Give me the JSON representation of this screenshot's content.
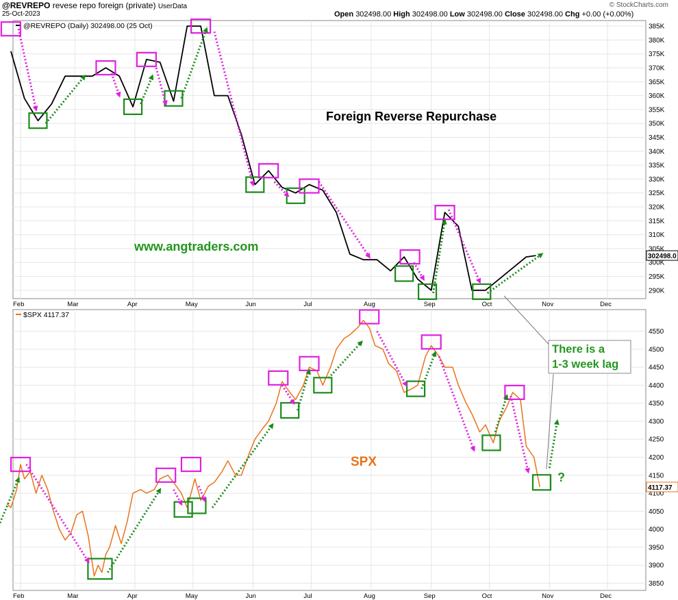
{
  "header": {
    "symbol": "@REVREPO",
    "description": "revese repo foreign (private)",
    "userdata": "UserData",
    "date": "25-Oct-2023",
    "quote": {
      "open_label": "Open",
      "open": "302498.00",
      "high_label": "High",
      "high": "302498.00",
      "low_label": "Low",
      "low": "302498.00",
      "close_label": "Close",
      "close": "302498.00",
      "chg_label": "Chg",
      "chg": "+0.00 (+0.00%)"
    },
    "brand": "© StockCharts.com"
  },
  "chart_data": [
    {
      "type": "line",
      "legend": "@REVREPO (Daily) 302498.00 (25 Oct)",
      "title": "Foreign Reverse Repurchase",
      "watermark": "www.angtraders.com",
      "last_label": "302498.0",
      "line_color": "#000000",
      "ylim": [
        287,
        387
      ],
      "y_ticks": [
        "290K",
        "295K",
        "300K",
        "305K",
        "310K",
        "315K",
        "320K",
        "325K",
        "330K",
        "335K",
        "340K",
        "345K",
        "350K",
        "355K",
        "360K",
        "365K",
        "370K",
        "375K",
        "380K",
        "385K"
      ],
      "x_ticks": [
        "Feb",
        "Mar",
        "Apr",
        "May",
        "Jun",
        "Jul",
        "Aug",
        "Sep",
        "Oct",
        "Nov",
        "Dec"
      ],
      "series": [
        {
          "x": [
            "2023-01-27",
            "2023-02-03",
            "2023-02-10",
            "2023-02-17",
            "2023-02-24",
            "2023-03-03",
            "2023-03-10",
            "2023-03-17",
            "2023-03-24",
            "2023-03-31",
            "2023-04-07",
            "2023-04-14",
            "2023-04-21",
            "2023-04-28",
            "2023-05-05",
            "2023-05-12",
            "2023-05-19",
            "2023-05-26",
            "2023-06-02",
            "2023-06-09",
            "2023-06-16",
            "2023-06-23",
            "2023-06-30",
            "2023-07-07",
            "2023-07-14",
            "2023-07-21",
            "2023-07-28",
            "2023-08-04",
            "2023-08-11",
            "2023-08-18",
            "2023-08-25",
            "2023-09-01",
            "2023-09-08",
            "2023-09-15",
            "2023-09-22",
            "2023-09-29",
            "2023-10-06",
            "2023-10-13",
            "2023-10-20",
            "2023-10-25"
          ],
          "values": [
            376,
            359,
            351,
            357,
            367,
            367,
            367,
            370,
            367,
            356,
            373,
            372,
            358,
            385,
            385,
            360,
            360,
            346,
            328,
            333,
            327,
            325,
            328,
            326,
            318,
            303,
            301,
            301,
            297,
            302,
            294,
            290,
            318,
            313,
            290,
            290,
            294,
            298,
            302,
            302.5
          ]
        }
      ],
      "annotations": [
        {
          "type": "peak-box",
          "x": "2023-01-27",
          "y": 384
        },
        {
          "type": "trough-box",
          "x": "2023-02-10",
          "y": 351
        },
        {
          "type": "peak-box",
          "x": "2023-03-17",
          "y": 370
        },
        {
          "type": "trough-box",
          "x": "2023-03-31",
          "y": 356
        },
        {
          "type": "peak-box",
          "x": "2023-04-07",
          "y": 373
        },
        {
          "type": "trough-box",
          "x": "2023-04-21",
          "y": 359
        },
        {
          "type": "peak-box",
          "x": "2023-05-05",
          "y": 385
        },
        {
          "type": "trough-box",
          "x": "2023-06-02",
          "y": 328
        },
        {
          "type": "peak-box",
          "x": "2023-06-09",
          "y": 333
        },
        {
          "type": "trough-box",
          "x": "2023-06-23",
          "y": 324
        },
        {
          "type": "peak-box",
          "x": "2023-06-30",
          "y": 327.5
        },
        {
          "type": "trough-box",
          "x": "2023-08-18",
          "y": 296
        },
        {
          "type": "peak-box",
          "x": "2023-08-21",
          "y": 302
        },
        {
          "type": "trough-box",
          "x": "2023-08-30",
          "y": 289.5
        },
        {
          "type": "peak-box",
          "x": "2023-09-08",
          "y": 318
        },
        {
          "type": "trough-box",
          "x": "2023-09-27",
          "y": 289.5
        },
        {
          "type": "down-arrow",
          "from": [
            "2023-01-31",
            384
          ],
          "to": [
            "2023-02-09",
            355
          ]
        },
        {
          "type": "up-arrow",
          "from": [
            "2023-02-14",
            350
          ],
          "to": [
            "2023-03-06",
            367
          ]
        },
        {
          "type": "down-arrow",
          "from": [
            "2023-03-20",
            368
          ],
          "to": [
            "2023-03-24",
            360
          ]
        },
        {
          "type": "up-arrow",
          "from": [
            "2023-04-04",
            357
          ],
          "to": [
            "2023-04-10",
            367
          ]
        },
        {
          "type": "down-arrow",
          "from": [
            "2023-04-12",
            370
          ],
          "to": [
            "2023-04-17",
            357
          ]
        },
        {
          "type": "up-arrow",
          "from": [
            "2023-04-25",
            359
          ],
          "to": [
            "2023-05-08",
            384
          ]
        },
        {
          "type": "down-arrow",
          "from": [
            "2023-05-12",
            383
          ],
          "to": [
            "2023-06-01",
            328
          ]
        },
        {
          "type": "down-arrow",
          "from": [
            "2023-06-12",
            329
          ],
          "to": [
            "2023-06-19",
            324
          ]
        },
        {
          "type": "down-arrow",
          "from": [
            "2023-07-05",
            329
          ],
          "to": [
            "2023-07-31",
            302
          ]
        },
        {
          "type": "down-arrow",
          "from": [
            "2023-08-23",
            300
          ],
          "to": [
            "2023-08-28",
            294
          ]
        },
        {
          "type": "up-arrow",
          "from": [
            "2023-09-02",
            289
          ],
          "to": [
            "2023-09-08",
            315
          ]
        },
        {
          "type": "down-arrow",
          "from": [
            "2023-09-10",
            319
          ],
          "to": [
            "2023-09-26",
            293
          ]
        },
        {
          "type": "up-arrow",
          "from": [
            "2023-09-30",
            289
          ],
          "to": [
            "2023-10-28",
            303
          ]
        }
      ]
    },
    {
      "type": "line",
      "legend": "$SPX 4117.37",
      "title": "SPX",
      "last_label": "4117.37",
      "line_color": "#e8731a",
      "ylim": [
        3830,
        4610
      ],
      "y_ticks": [
        "3850",
        "3900",
        "3950",
        "4000",
        "4050",
        "4100",
        "4150",
        "4200",
        "4250",
        "4300",
        "4350",
        "4400",
        "4450",
        "4500",
        "4550"
      ],
      "x_ticks": [
        "Feb",
        "Mar",
        "Apr",
        "May",
        "Jun",
        "Jul",
        "Aug",
        "Sep",
        "Oct",
        "Nov",
        "Dec"
      ],
      "series": [
        {
          "x": [
            "2023-01-25",
            "2023-01-27",
            "2023-01-30",
            "2023-02-01",
            "2023-02-03",
            "2023-02-06",
            "2023-02-09",
            "2023-02-12",
            "2023-02-15",
            "2023-02-18",
            "2023-02-21",
            "2023-02-24",
            "2023-02-27",
            "2023-03-02",
            "2023-03-05",
            "2023-03-08",
            "2023-03-11",
            "2023-03-13",
            "2023-03-15",
            "2023-03-17",
            "2023-03-19",
            "2023-03-22",
            "2023-03-25",
            "2023-03-28",
            "2023-03-31",
            "2023-04-04",
            "2023-04-07",
            "2023-04-11",
            "2023-04-14",
            "2023-04-18",
            "2023-04-21",
            "2023-04-25",
            "2023-04-28",
            "2023-05-02",
            "2023-05-05",
            "2023-05-09",
            "2023-05-12",
            "2023-05-16",
            "2023-05-19",
            "2023-05-23",
            "2023-05-26",
            "2023-05-30",
            "2023-06-02",
            "2023-06-06",
            "2023-06-09",
            "2023-06-13",
            "2023-06-16",
            "2023-06-20",
            "2023-06-23",
            "2023-06-27",
            "2023-06-30",
            "2023-07-04",
            "2023-07-07",
            "2023-07-11",
            "2023-07-14",
            "2023-07-18",
            "2023-07-21",
            "2023-07-25",
            "2023-07-28",
            "2023-07-31",
            "2023-08-03",
            "2023-08-07",
            "2023-08-10",
            "2023-08-14",
            "2023-08-18",
            "2023-08-22",
            "2023-08-25",
            "2023-08-29",
            "2023-09-01",
            "2023-09-05",
            "2023-09-08",
            "2023-09-12",
            "2023-09-15",
            "2023-09-19",
            "2023-09-22",
            "2023-09-26",
            "2023-09-29",
            "2023-10-03",
            "2023-10-06",
            "2023-10-10",
            "2023-10-13",
            "2023-10-17",
            "2023-10-20",
            "2023-10-24",
            "2023-10-27"
          ],
          "values": [
            4070,
            4060,
            4110,
            4180,
            4140,
            4160,
            4100,
            4150,
            4110,
            4050,
            4000,
            3970,
            3990,
            4040,
            4050,
            3980,
            3870,
            3900,
            3880,
            3930,
            3950,
            4010,
            3960,
            4020,
            4100,
            4110,
            4100,
            4110,
            4140,
            4150,
            4130,
            4100,
            4060,
            4140,
            4080,
            4120,
            4130,
            4160,
            4190,
            4150,
            4150,
            4210,
            4250,
            4280,
            4300,
            4350,
            4410,
            4380,
            4360,
            4400,
            4450,
            4440,
            4400,
            4450,
            4500,
            4530,
            4540,
            4560,
            4580,
            4560,
            4510,
            4500,
            4460,
            4440,
            4380,
            4390,
            4400,
            4480,
            4510,
            4480,
            4450,
            4450,
            4400,
            4350,
            4320,
            4270,
            4290,
            4240,
            4300,
            4340,
            4380,
            4360,
            4230,
            4200,
            4117.37
          ]
        }
      ],
      "annotations": [
        {
          "type": "peak-box",
          "x": "2023-02-01",
          "y": 4180
        },
        {
          "type": "trough-box",
          "x": "2023-03-14",
          "y": 3890
        },
        {
          "type": "peak-box",
          "x": "2023-04-17",
          "y": 4150
        },
        {
          "type": "trough-box",
          "x": "2023-04-26",
          "y": 4055
        },
        {
          "type": "peak-box",
          "x": "2023-04-30",
          "y": 4180
        },
        {
          "type": "trough-box",
          "x": "2023-05-03",
          "y": 4065
        },
        {
          "type": "peak-box",
          "x": "2023-06-14",
          "y": 4420
        },
        {
          "type": "trough-box",
          "x": "2023-06-20",
          "y": 4330
        },
        {
          "type": "peak-box",
          "x": "2023-06-30",
          "y": 4460
        },
        {
          "type": "trough-box",
          "x": "2023-07-07",
          "y": 4400
        },
        {
          "type": "peak-box",
          "x": "2023-07-31",
          "y": 4590
        },
        {
          "type": "trough-box",
          "x": "2023-08-24",
          "y": 4390
        },
        {
          "type": "peak-box",
          "x": "2023-09-01",
          "y": 4520
        },
        {
          "type": "trough-box",
          "x": "2023-10-02",
          "y": 4240
        },
        {
          "type": "peak-box",
          "x": "2023-10-14",
          "y": 4380
        },
        {
          "type": "trough-box",
          "x": "2023-10-28",
          "y": 4130
        },
        {
          "type": "up-arrow",
          "from": [
            "2023-01-20",
            4000
          ],
          "to": [
            "2023-01-31",
            4140
          ]
        },
        {
          "type": "down-arrow",
          "from": [
            "2023-02-04",
            4180
          ],
          "to": [
            "2023-03-08",
            3910
          ]
        },
        {
          "type": "up-arrow",
          "from": [
            "2023-03-18",
            3880
          ],
          "to": [
            "2023-04-14",
            4110
          ]
        },
        {
          "type": "down-arrow",
          "from": [
            "2023-04-21",
            4110
          ],
          "to": [
            "2023-04-25",
            4070
          ]
        },
        {
          "type": "down-arrow",
          "from": [
            "2023-05-04",
            4120
          ],
          "to": [
            "2023-05-07",
            4080
          ]
        },
        {
          "type": "up-arrow",
          "from": [
            "2023-05-11",
            4060
          ],
          "to": [
            "2023-06-11",
            4290
          ]
        },
        {
          "type": "down-arrow",
          "from": [
            "2023-06-16",
            4400
          ],
          "to": [
            "2023-06-22",
            4350
          ]
        },
        {
          "type": "up-arrow",
          "from": [
            "2023-06-24",
            4330
          ],
          "to": [
            "2023-06-30",
            4440
          ]
        },
        {
          "type": "up-arrow",
          "from": [
            "2023-07-10",
            4420
          ],
          "to": [
            "2023-07-27",
            4520
          ]
        },
        {
          "type": "down-arrow",
          "from": [
            "2023-08-04",
            4550
          ],
          "to": [
            "2023-08-19",
            4400
          ]
        },
        {
          "type": "up-arrow",
          "from": [
            "2023-08-27",
            4390
          ],
          "to": [
            "2023-09-03",
            4490
          ]
        },
        {
          "type": "down-arrow",
          "from": [
            "2023-09-05",
            4480
          ],
          "to": [
            "2023-09-23",
            4220
          ]
        },
        {
          "type": "up-arrow",
          "from": [
            "2023-10-04",
            4270
          ],
          "to": [
            "2023-10-10",
            4370
          ]
        },
        {
          "type": "down-arrow",
          "from": [
            "2023-10-12",
            4370
          ],
          "to": [
            "2023-10-21",
            4160
          ]
        },
        {
          "type": "up-arrow",
          "from": [
            "2023-11-01",
            4170
          ],
          "to": [
            "2023-11-05",
            4300
          ]
        }
      ]
    }
  ],
  "callout": {
    "lines": [
      "There is a",
      "1-3 week lag"
    ],
    "question": "?"
  },
  "colors": {
    "peak": "#e020e0",
    "trough": "#1a8a1a",
    "grid": "#e6e6e6",
    "axis": "#888888",
    "revrepo_line": "#000000",
    "spx_line": "#e8731a",
    "title_revrepo": "#000000",
    "watermark": "#22961e",
    "title_spx": "#e8731a"
  }
}
